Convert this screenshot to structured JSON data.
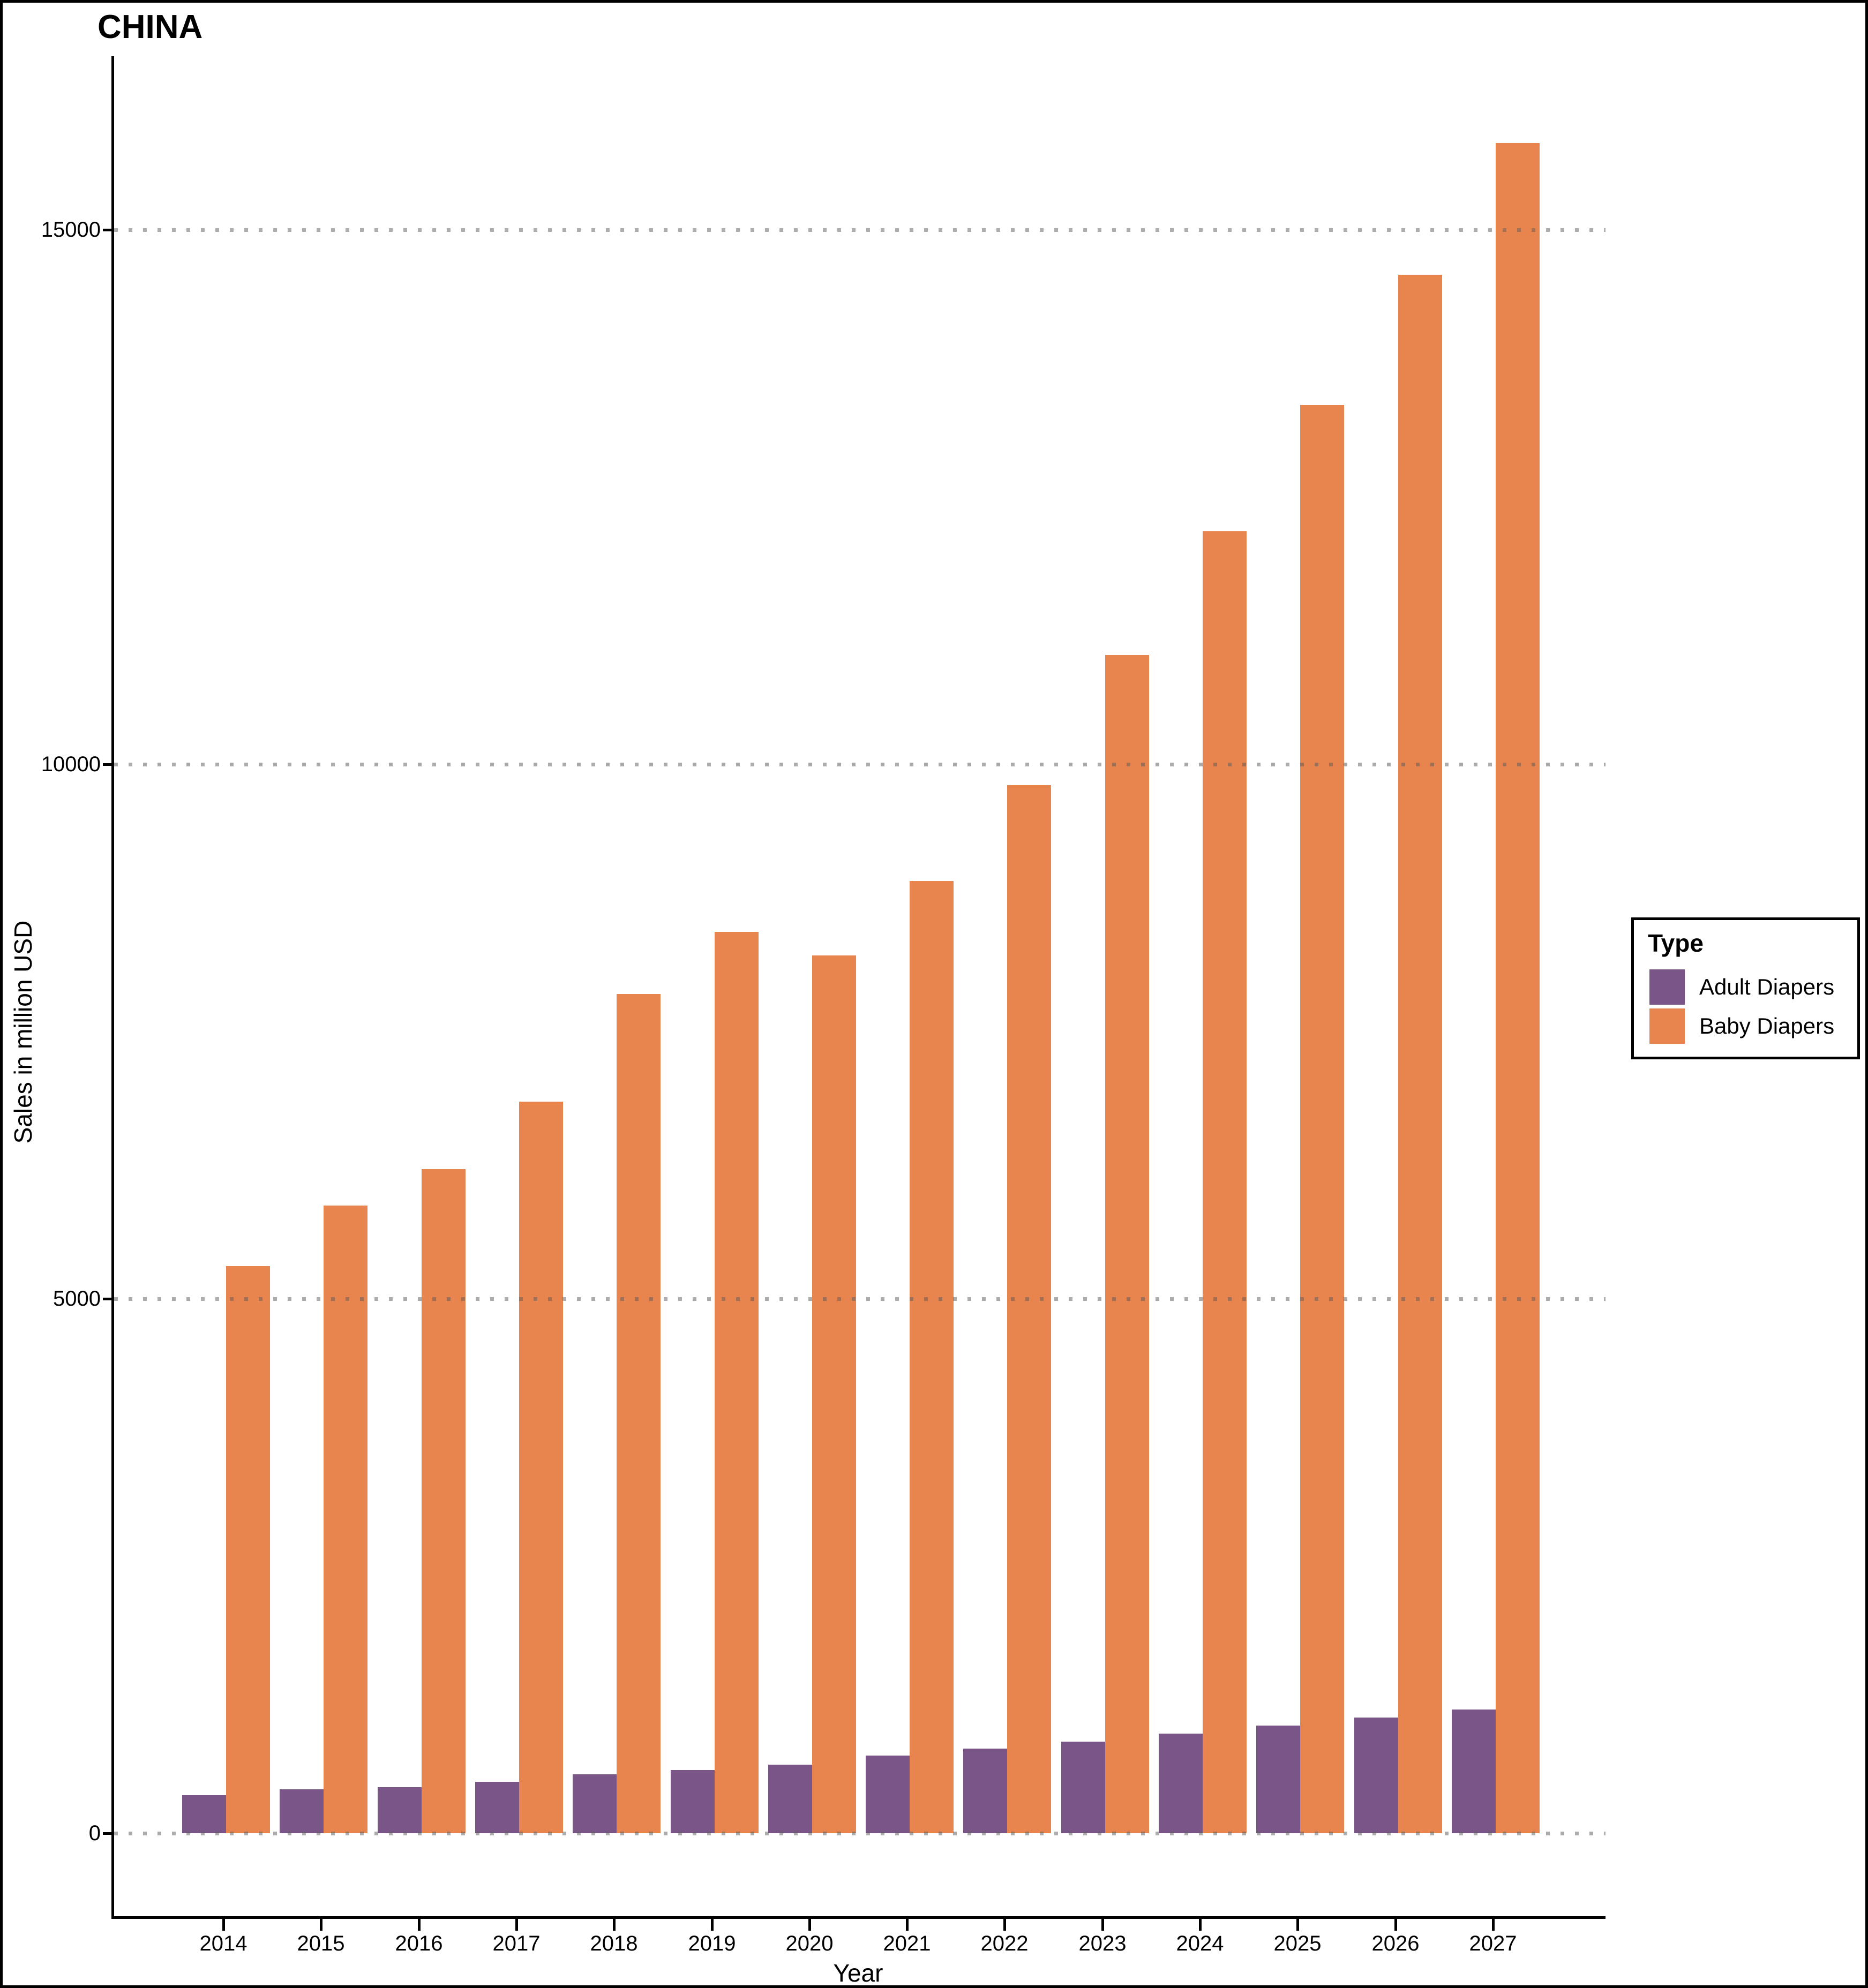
{
  "title": "CHINA",
  "axes": {
    "x_label": "Year",
    "y_label": "Sales in million USD"
  },
  "legend": {
    "title": "Type",
    "items": [
      {
        "label": "Adult Diapers",
        "color": "#7A5587"
      },
      {
        "label": "Baby Diapers",
        "color": "#E8854E"
      }
    ]
  },
  "chart_data": {
    "type": "bar",
    "title": "CHINA",
    "xlabel": "Year",
    "ylabel": "Sales in million USD",
    "categories": [
      "2014",
      "2015",
      "2016",
      "2017",
      "2018",
      "2019",
      "2020",
      "2021",
      "2022",
      "2023",
      "2024",
      "2025",
      "2026",
      "2027"
    ],
    "series": [
      {
        "name": "Adult Diapers",
        "color": "#7A5587",
        "values": [
          355,
          410,
          430,
          480,
          550,
          590,
          640,
          725,
          790,
          855,
          930,
          1005,
          1080,
          1155
        ]
      },
      {
        "name": "Baby Diapers",
        "color": "#E8854E",
        "values": [
          5305,
          5870,
          6210,
          6845,
          7850,
          8430,
          8210,
          8910,
          9805,
          11020,
          12180,
          13360,
          14580,
          15810
        ]
      }
    ],
    "ylim": [
      0,
      16600
    ],
    "yticks": [
      0,
      5000,
      10000,
      15000
    ],
    "grid": "horizontal dotted gray, drawn over bars",
    "legend_position": "right",
    "bar_grouping": "dodged"
  }
}
